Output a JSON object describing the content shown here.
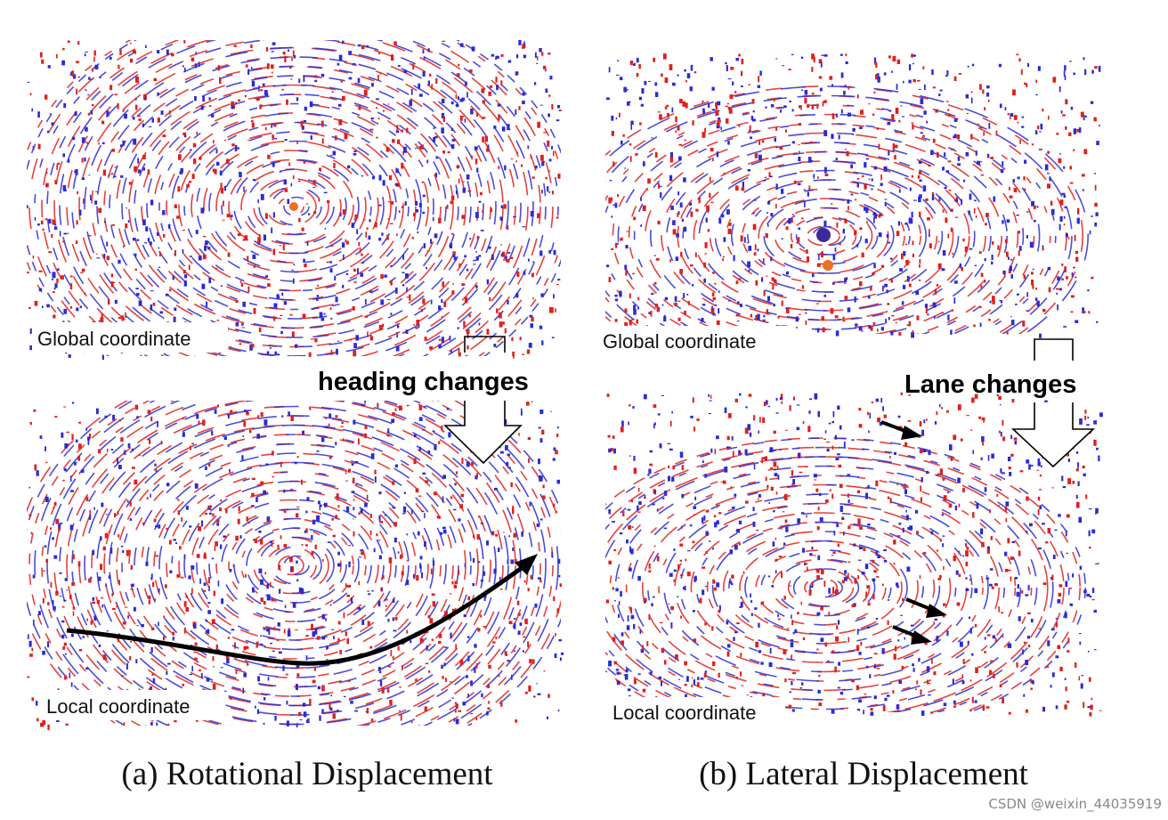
{
  "panels": [
    {
      "top_label": "Global coordinate",
      "change_label": "heading changes",
      "bottom_label": "Local coordinate",
      "caption": "(a) Rotational Displacement"
    },
    {
      "top_label": "Global coordinate",
      "change_label": "Lane changes",
      "bottom_label": "Local coordinate",
      "caption": "(b) Lateral Displacement"
    }
  ],
  "watermark": "CSDN @weixin_44035919"
}
